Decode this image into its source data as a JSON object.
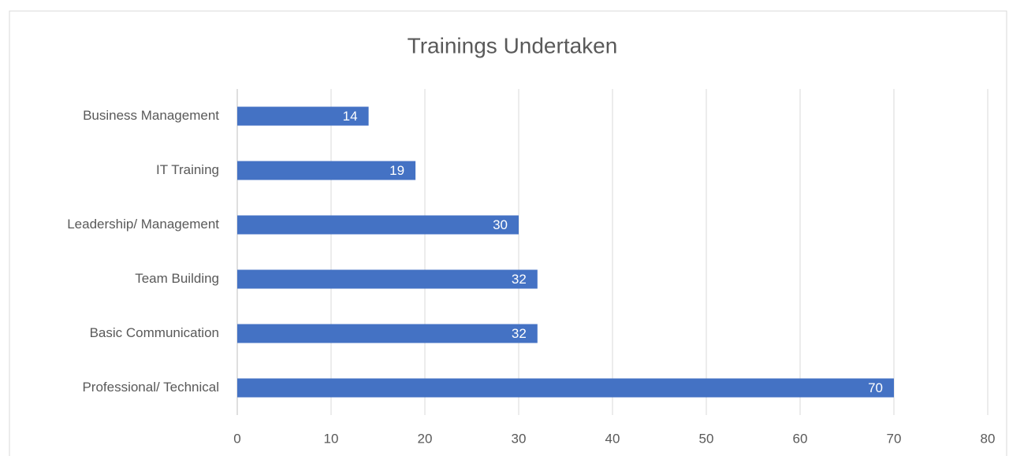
{
  "chart_data": {
    "type": "hbar",
    "title": "Trainings Undertaken",
    "categories": [
      "Business Management",
      "IT Training",
      "Leadership/ Management",
      "Team Building",
      "Basic Communication",
      "Professional/ Technical"
    ],
    "values": [
      14,
      19,
      30,
      32,
      32,
      70
    ],
    "color": "#4472c4",
    "xlim": [
      0,
      80
    ],
    "xticks": [
      0,
      10,
      20,
      30,
      40,
      50,
      60,
      70,
      80
    ],
    "grid": true
  }
}
